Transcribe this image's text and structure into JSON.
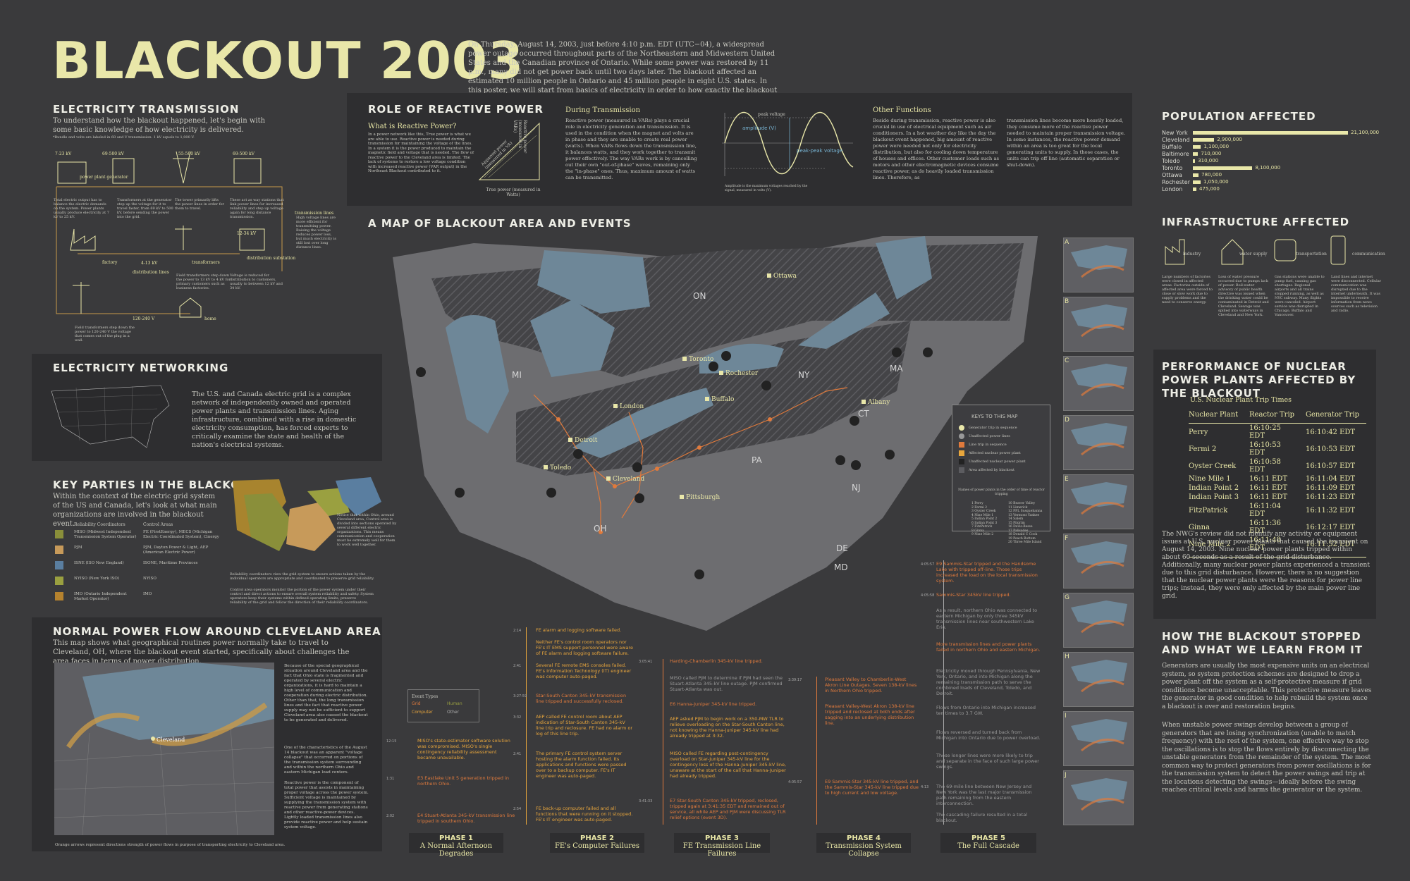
{
  "header": {
    "title": "BLACKOUT 2003",
    "intro": "On Thursday, August 14, 2003, just before 4:10 p.m. EDT (UTC−04), a widespread power outage occurred throughout parts of the Northeastern and Midwestern United States and the Canadian province of Ontario. While some power was restored by 11 p.m., many did not get power back until two days later. The blackout affected an estimated 10 million people in Ontario and 45 million people in eight U.S. states. In this poster, we will start from basics of electricity in order to how exactly the blackout happened."
  },
  "transmission": {
    "title": "ELECTRICITY TRANSMISSION",
    "lead": "To understand how the blackout happened, let's begin with some basic knowledge of how electricity is delivered.",
    "note": "*Bundle and volts are labeled in 60 and V transmission. 1 kV equals to 1,000 V.",
    "labels": [
      "7-23 kV",
      "69-500 kV",
      "55-500 kV",
      "69-500 kV",
      "power plant generator",
      "step up transformer",
      "transmission lines",
      "4-13 kV",
      "factory",
      "distribution lines",
      "transformers",
      "12-34 kV",
      "distribution substation",
      "120-240 V",
      "home"
    ],
    "notes": [
      "Total electric output has to balance the electric demands on the system. Power plants usually produce electricity at 7 kV to 25 kV.",
      "Transformers at the generator step up the voltage for it to travel faster, from 69 kV to 500 kV, before sending the power into the grid.",
      "The tower primarily lifts the power lines in order for them to travel.",
      "These act as way stations that link power lines for increased reliability and step up voltage again for long distance transmission.",
      "High voltage lines are more efficient for transmitting power. Raising the voltage reduces power loss, but much electricity is still lost over long distance lines.",
      "Field transformers step down the power to 13 kV to 4 kV for primary customers such as business factories.",
      "Voltage is reduced for distribution to customers, usually to between 12 kV and 34 kV.",
      "Field transformers step down the power to 120-240 V the voltage that comes out of the plug in a wall."
    ]
  },
  "networking": {
    "title": "ELECTRICITY NETWORKING",
    "body": "The U.S. and Canada electric grid is a complex network of independently owned and operated power plants and transmission lines. Aging infrastructure, combined with a rise in domestic electricity consumption, has forced experts to critically examine the state and health of the nation's electrical systems."
  },
  "parties": {
    "title": "KEY PARTIES IN THE BLACKOUT",
    "lead": "Within the context of the electric grid system of the US and Canada, let's look at what main organizations are involved in the blackout event.",
    "col1": "Reliability Coordinators",
    "col2": "Control Areas",
    "rows": [
      {
        "rc": "MISO (Midwest Independent Transmission System Operator)",
        "ca": "FE (FirstEnergy), MECS (Michigan Electric Coordinated System), Cinergy",
        "color": "#8a8f3a"
      },
      {
        "rc": "PJM",
        "ca": "PJM, Dayton Power & Light, AEP (American Electric Power)",
        "color": "#c79a5a"
      },
      {
        "rc": "ISNE (ISO New England)",
        "ca": "ISONE, Maritime Provinces",
        "color": "#5a7ea0"
      },
      {
        "rc": "NYISO (New York ISO)",
        "ca": "NYISO",
        "color": "#9aa040"
      },
      {
        "rc": "IMO (Ontario Independent Market Operator)",
        "ca": "IMO",
        "color": "#b5822e"
      }
    ],
    "note1": "Notice that within Ohio, around Cleveland area, Control area is divided into sections operated by several different electric organizations. This means communication and cooperation must be extremely well for them to work well together.",
    "note2": "Reliability coordinators view the grid system to ensure actions taken by the individual operators are appropriate and coordinated to preserve grid reliability.",
    "note3": "Control area operators monitor the portion of the power system under their control and direct actions to ensure overall system reliability and safety. System operators keep their systems within defined operating limits, preserve reliability of the grid and follow the direction of their reliability coordinators."
  },
  "cleveland": {
    "title": "NORMAL POWER FLOW AROUND CLEVELAND AREA",
    "lead": "This map shows what geographical routines power normally take to travel to Cleveland, OH, where the blackout event started, specifically about challenges the area faces in terms of power distribution.",
    "city": "Cleveland",
    "body1": "Because of the special geographical situation around Cleveland area and the fact that Ohio state is fragmented and operated by several electric organizations, it is hard to maintain a high level of communication and cooperation during electric distribution. Other than that, the long transmission lines and the fact that reactive power supply may not be sufficient to support Cleveland area also caused the blackout to be generated and delivered.",
    "body2": "One of the characteristics of the August 14 blackout was an apparent \"voltage collapse\" that occurred on portions of the transmission system surrounding and within the northern Ohio and eastern Michigan load centers.",
    "body3": "Reactive power is the component of total power that assists in maintaining proper voltage across the power system. Sufficient voltage is maintained by supplying the transmission system with reactive power from generating stations and other reactive-power devices. Lightly loaded transmission lines also provide reactive power and help sustain system voltage.",
    "caption": "Orange arrows represent directions strength of power flows in purpose of transporting electricity to Cleveland area."
  },
  "reactive": {
    "title": "ROLE OF REACTIVE POWER",
    "q": "What is Reactive Power?",
    "q_body": "In a power network like this, True power is what we are able to use. Reactive power is needed during transmission for maintaining the voltage of the lines. In a system it is the power produced to maintain the magnetic field and voltage that is needed. The flow of reactive power to the Cleveland area is limited. The lack of systems to restore a low voltage condition with increased reactive power (VAR output) in the Northeast Blackout contributed to it.",
    "axis1": "True power (measured in Watts)",
    "axis2": "Reactive power (measured in VARs)",
    "axis3": "Apparent power (measured in VA)",
    "during_title": "During Transmission",
    "during_body": "Reactive power (measured in VARs) plays a crucial role in electricity generation and transmission. It is used in the condition when the magnet and volts are in phase and they are unable to create real power (watts). When VARs flows down the transmission line, it balances watts, and they work together to transmit power effectively. The way VARs work is by cancelling out their own \"out-of-phase\" waves, remaining only the \"in-phase\" ones. Thus, maximum amount of watts can be transmitted.",
    "wave_labels": [
      "peak voltage",
      "amplitude (V)",
      "peak-peak voltage"
    ],
    "wave_note": "Amplitude is the maximum voltages reached by the signal, measured in volts (V).",
    "other_title": "Other Functions",
    "other_body": "Beside during transmission, reactive power is also crucial in use of electrical equipment such as air conditioners. In a hot weather day like the day the blackout event happened, big amount of reactive power were needed not only for electricity distribution, but also for cooling down temperature of houses and offices. Other customer loads such as motors and other electromagnetic devices consume reactive power, as do heavily loaded transmission lines. Therefore, as",
    "other_body2": "transmission lines become more heavily loaded, they consume more of the reactive power needed to maintain proper transmission voltage. In some instances, the reactive power demand within an area is too great for the local generating units to supply. In those cases, the units can trip off line (automatic separation or shut-down)."
  },
  "map": {
    "title": "A MAP OF BLACKOUT AREA AND EVENTS",
    "states": [
      "ON",
      "MI",
      "NY",
      "PA",
      "OH",
      "NJ",
      "DE",
      "MD",
      "MA",
      "CT"
    ],
    "cities": [
      "Ottawa",
      "Toronto",
      "Rochester",
      "Buffalo",
      "Albany",
      "London",
      "Detroit",
      "Toledo",
      "Cleveland",
      "Pittsburgh"
    ],
    "keys_title": "KEYS TO THIS MAP",
    "keys": [
      "Generator trip in sequence",
      "Unaffected power lines",
      "Line trip in sequence",
      "Affected nuclear power plant",
      "Unaffected nuclear power plant",
      "Area affected by blackout"
    ],
    "nuclear_title": "Names of power plants in the order of time of reactor tripping",
    "nuclear_list": [
      "1 Perry",
      "2 Fermi 2",
      "3 Oyster Creek",
      "4 Nine Mile 1",
      "5 Indian Point 2",
      "6 Indian Point 3",
      "7 FitzPatrick",
      "8 Ginna",
      "9 Nine Mile 2",
      "10 Beaver Valley",
      "11 Limerick",
      "12 PPL Susquehanna",
      "13 Vermont Yankee",
      "14 Salem",
      "15 Pilgrim",
      "16 Davis-Besse",
      "17 Palisades",
      "18 Donald C Cook",
      "19 Peach Bottom",
      "20 Three Mile Island"
    ]
  },
  "events": {
    "legend_title": "Event Types",
    "legend": [
      "Grid",
      "Human",
      "Computer",
      "Other"
    ],
    "left": [
      {
        "t": "2:14",
        "text": "FE alarm and logging software failed."
      },
      {
        "t": "",
        "text": "Neither FE's control room operators nor FE's IT EMS support personnel were aware of FE alarm and logging software failure."
      },
      {
        "t": "2:41",
        "text": "Several FE remote EMS consoles failed. FE's Information Technology (IT) engineer was computer auto-paged."
      },
      {
        "t": "3:27:59",
        "text": "Star-South Canton 345-kV transmission line tripped and successfully reclosed."
      },
      {
        "t": "3:32",
        "text": "AEP called FE control room about AEP indication of Star-South Canton 345-kV line trip and reclosure. FE had no alarm or log of this line trip."
      },
      {
        "t": "12:15",
        "text": "MISO's state-estimator software solution was compromised. MISO's single contingency reliability assessment became unavailable."
      },
      {
        "t": "2:41",
        "text": "The primary FE control system server hosting the alarm function failed. Its applications and functions were passed over to a backup computer. FE's IT engineer was auto-paged."
      },
      {
        "t": "1:31",
        "text": "E3 Eastlake Unit 5 generation tripped in northern Ohio."
      },
      {
        "t": "2:54",
        "text": "FE back-up computer failed and all functions that were running on it stopped. FE's IT engineer was auto-paged."
      },
      {
        "t": "2:02",
        "text": "E4 Stuart-Atlanta 345-kV transmission line tripped in southern Ohio."
      }
    ],
    "mid": [
      {
        "t": "3:05:41",
        "text": "Harding-Chamberlin 345-kV line tripped."
      },
      {
        "t": "",
        "text": "MISO called PJM to determine if PJM had seen the Stuart-Atlanta 345-kV line outage. PJM confirmed Stuart-Atlanta was out."
      },
      {
        "t": "",
        "text": "E6 Hanna-Juniper 345-kV line tripped."
      },
      {
        "t": "",
        "text": "AEP asked PJM to begin work on a 350-MW TLR to relieve overloading on the Star-South Canton line, not knowing the Hanna-Juniper 345-kV line had already tripped at 3:32."
      },
      {
        "t": "",
        "text": "MISO called FE regarding post-contingency overload on Star-Juniper 345-kV line for the contingency loss of the Hanna-Juniper 345-kV line, unaware at the start of the call that Hanna-Juniper had already tripped."
      },
      {
        "t": "3:41:33",
        "text": "E7 Star-South Canton 345-kV tripped, reclosed, tripped again at 3:41:35 EDT and remained out of service, all while AEP and PJM were discussing TLR relief options (event 3D)."
      }
    ],
    "right": [
      {
        "t": "3:39:17",
        "text": "Pleasant Valley to Chamberlin-West Akron Line Outages. Seven 138-kV lines in Northern Ohio tripped."
      },
      {
        "t": "",
        "text": "Pleasant Valley-West Akron 138-kV line tripped and reclosed at both ends after sagging into an underlying distribution line."
      },
      {
        "t": "4:05:57",
        "text": "E9 Sammis-Star 345-kV line tripped, and the Sammis-Star 345-kV line tripped due to high current and low voltage."
      }
    ],
    "far": [
      {
        "t": "4:05:57",
        "text": "E9 Sammis-Star tripped and the Handsome Lake with tripped off-line. Those trips increased the load on the local transmission system."
      },
      {
        "t": "4:05:58",
        "text": "Sammis-Star 345kV line tripped."
      },
      {
        "t": "",
        "text": "As a result, northern Ohio was connected to eastern Michigan by only three 345kV transmission lines near southwestern Lake Erie."
      },
      {
        "t": "",
        "text": "More transmission lines and power plants failed in northern Ohio and eastern Michigan."
      },
      {
        "t": "",
        "text": "Electricity moved through Pennsylvania, New York, Ontario, and into Michigan along the remaining transmission path to serve the combined loads of Cleveland, Toledo, and Detroit."
      },
      {
        "t": "",
        "text": "Flows from Ontario into Michigan increased ten times to 3.7 GW."
      },
      {
        "t": "",
        "text": "Flows reversed and turned back from Michigan into Ontario due to power overload."
      },
      {
        "t": "",
        "text": "These longer lines were more likely to trip and separate in the face of such large power swings."
      },
      {
        "t": "4:13",
        "text": "The 69-mile line between New Jersey and New York was the last major transmission path remaining from the eastern interconnection."
      },
      {
        "t": "",
        "text": "The cascading failure resulted in a total blackout."
      }
    ]
  },
  "phases": [
    {
      "name": "PHASE 1",
      "sub": "A Normal Afternoon Degrades"
    },
    {
      "name": "PHASE 2",
      "sub": "FE's Computer Failures"
    },
    {
      "name": "PHASE 3",
      "sub": "FE Transmission Line Failures"
    },
    {
      "name": "PHASE 4",
      "sub": "Transmission System Collapse"
    },
    {
      "name": "PHASE 5",
      "sub": "The Full Cascade"
    }
  ],
  "population": {
    "title": "POPULATION AFFECTED",
    "rows": [
      {
        "city": "New York",
        "value": 21100000,
        "label": "21,100,000"
      },
      {
        "city": "Cleveland",
        "value": 2900000,
        "label": "2,900,000"
      },
      {
        "city": "Buffalo",
        "value": 1100000,
        "label": "1,100,000"
      },
      {
        "city": "Baltimore",
        "value": 710000,
        "label": "710,000"
      },
      {
        "city": "Toledo",
        "value": 310000,
        "label": "310,000"
      },
      {
        "city": "Toronto",
        "value": 8100000,
        "label": "8,100,000"
      },
      {
        "city": "Ottawa",
        "value": 780000,
        "label": "780,000"
      },
      {
        "city": "Rochester",
        "value": 1050000,
        "label": "1,050,000"
      },
      {
        "city": "London",
        "value": 475000,
        "label": "475,000"
      }
    ]
  },
  "infrastructure": {
    "title": "INFRASTRUCTURE AFFECTED",
    "items": [
      {
        "label": "industry",
        "text": "Large numbers of factories were closed in affected areas. Factories outside of affected area were forced to close or slow work due to supply problems and the need to conserve energy."
      },
      {
        "label": "water supply",
        "text": "Loss of water pressure occurred due to pumps lack of power. Boil-water advisory of public health directive was issued when the drinking water could be contaminated in Detroit and Cleveland. Sewage was spilled into waterways in Cleveland and New York."
      },
      {
        "label": "transportation",
        "text": "Gas stations were unable to pump fuel, causing gas shortages. Regional airports and all trains stopped running, as well as NYC subway. Many flights were canceled. Airport service was disrupted in Chicago, Buffalo and Vancouver."
      },
      {
        "label": "communication",
        "text": "Land lines and internet were disconnected. Cellular communication was disrupted due to the internet underneath. It was impossible to receive information from news sources such as television and radio."
      }
    ]
  },
  "nuclear": {
    "title": "PERFORMANCE OF NUCLEAR POWER PLANTS AFFECTED BY THE BLACKOUT",
    "subtitle": "U.S. Nuclear Plant Trip Times",
    "cols": [
      "Nuclear Plant",
      "Reactor Trip",
      "Generator Trip"
    ],
    "rows": [
      [
        "Perry",
        "16:10:25 EDT",
        "16:10:42 EDT"
      ],
      [
        "Fermi 2",
        "16:10:53 EDT",
        "16:10:53 EDT"
      ],
      [
        "Oyster Creek",
        "16:10:58 EDT",
        "16:10:57 EDT"
      ],
      [
        "Nine Mile 1",
        "16:11 EDT",
        "16:11:04 EDT"
      ],
      [
        "Indian Point 2",
        "16:11 EDT",
        "16:11:09 EDT"
      ],
      [
        "Indian Point 3",
        "16:11 EDT",
        "16:11:23 EDT"
      ],
      [
        "FitzPatrick",
        "16:11:04 EDT",
        "16:11:32 EDT"
      ],
      [
        "Ginna",
        "16:11:36 EDT",
        "16:12:17 EDT"
      ],
      [
        "Nine Mile 2",
        "16:11:48 EDT",
        "16:11:52 EDT"
      ]
    ],
    "body": "The NWG's review did not identify any activity or equipment issues at U.S. nuclear power plants that caused the transient on August 14, 2003. Nine nuclear power plants tripped within about 60 seconds as a result of the grid disturbance. Additionally, many nuclear power plants experienced a transient due to this grid disturbance. However, there is no suggestion that the nuclear power plants were the reasons for power line trips; instead, they were only affected by the main power line grid."
  },
  "stopped": {
    "title": "HOW THE BLACKOUT STOPPED AND WHAT WE LEARN FROM IT",
    "p1": "Generators are usually the most expensive units on an electrical system, so system protection schemes are designed to drop a power plant off the system as a self-protective measure if grid conditions become unacceptable. This protective measure leaves the generator in good condition to help rebuild the system once a blackout is over and restoration begins.",
    "p2": "When unstable power swings develop between a group of generators that are losing synchronization (unable to match frequency) with the rest of the system, one effective way to stop the oscillations is to stop the flows entirely by disconnecting the unstable generators from the remainder of the system. The most common way to protect generators from power oscillations is for the transmission system to detect the power swings and trip at the locations detecting the swings—ideally before the swing reaches critical levels and harms the generator or the system."
  },
  "thumbs": [
    "A",
    "B",
    "C",
    "D",
    "E",
    "F",
    "G",
    "H",
    "I",
    "J"
  ],
  "colors": {
    "accent": "#e9e7a9",
    "event": "#e07a3c",
    "panel": "#2e2e30",
    "bg": "#3a3a3c",
    "water": "#6e8798",
    "land": "#6d6d70"
  }
}
